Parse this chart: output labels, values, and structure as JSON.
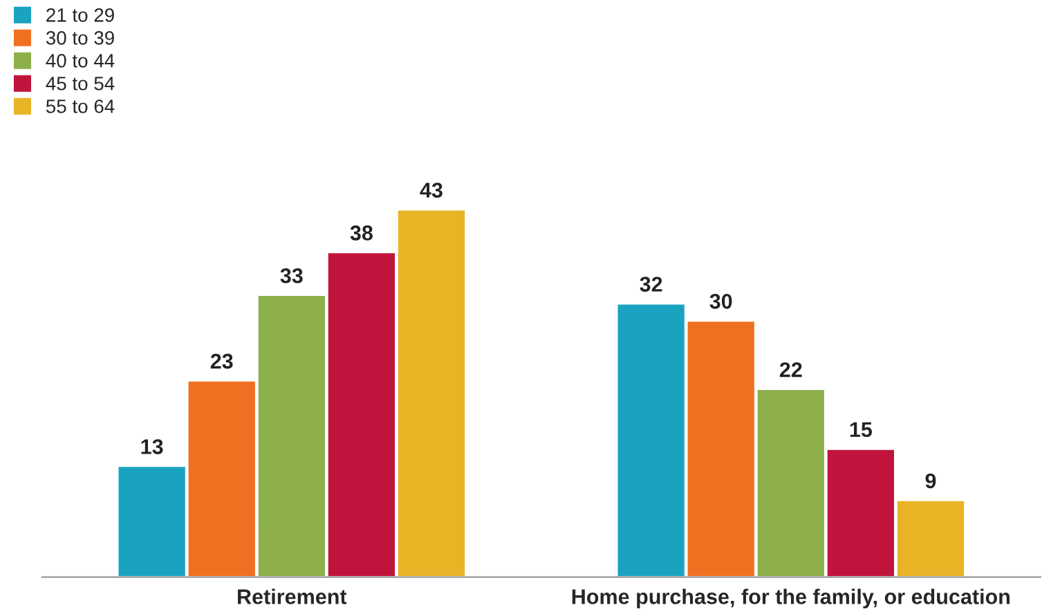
{
  "chart_data": {
    "type": "bar",
    "categories": [
      "Retirement",
      "Home purchase, for the family, or education"
    ],
    "series": [
      {
        "name": "21 to 29",
        "color": "#1aa3c0",
        "values": [
          13,
          32
        ]
      },
      {
        "name": "30 to 39",
        "color": "#f07022",
        "values": [
          23,
          30
        ]
      },
      {
        "name": "40 to 44",
        "color": "#8db04a",
        "values": [
          33,
          22
        ]
      },
      {
        "name": "45 to 54",
        "color": "#c0143c",
        "values": [
          38,
          15
        ]
      },
      {
        "name": "55 to 64",
        "color": "#e8b425",
        "values": [
          43,
          9
        ]
      }
    ],
    "data_labels": true,
    "legend": "top left",
    "tick_labels": "x",
    "grid": false
  }
}
